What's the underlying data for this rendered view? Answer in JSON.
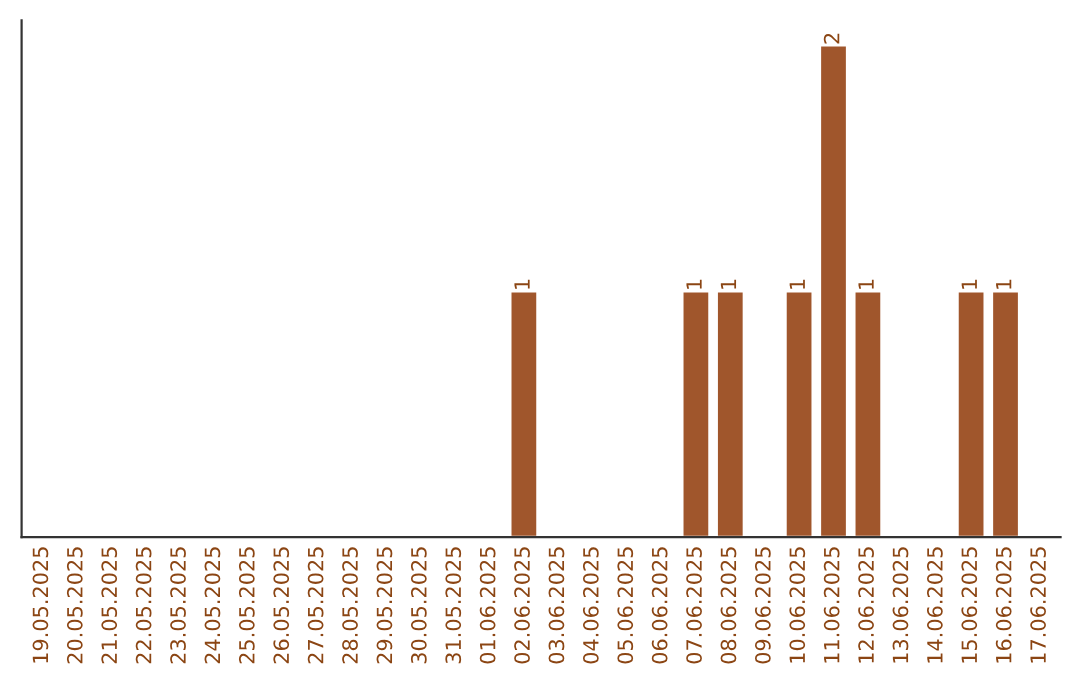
{
  "chart_data": {
    "type": "bar",
    "categories": [
      "19.05.2025",
      "20.05.2025",
      "21.05.2025",
      "22.05.2025",
      "23.05.2025",
      "24.05.2025",
      "25.05.2025",
      "26.05.2025",
      "27.05.2025",
      "28.05.2025",
      "29.05.2025",
      "30.05.2025",
      "31.05.2025",
      "01.06.2025",
      "02.06.2025",
      "03.06.2025",
      "04.06.2025",
      "05.06.2025",
      "06.06.2025",
      "07.06.2025",
      "08.06.2025",
      "09.06.2025",
      "10.06.2025",
      "11.06.2025",
      "12.06.2025",
      "13.06.2025",
      "14.06.2025",
      "15.06.2025",
      "16.06.2025",
      "17.06.2025"
    ],
    "values": [
      null,
      null,
      null,
      null,
      null,
      null,
      null,
      null,
      null,
      null,
      null,
      null,
      null,
      null,
      1,
      null,
      null,
      null,
      null,
      1,
      1,
      null,
      1,
      2,
      1,
      null,
      null,
      1,
      1,
      null
    ],
    "data_labels": true,
    "color": "#a0562c",
    "grid": false,
    "legend": false
  }
}
